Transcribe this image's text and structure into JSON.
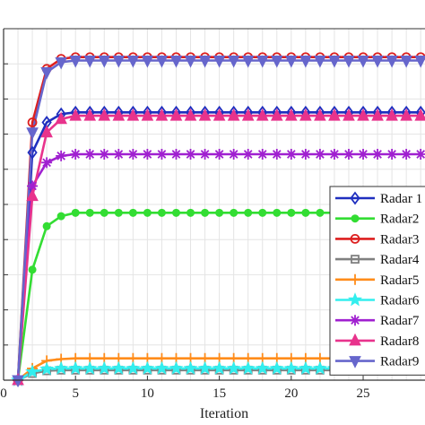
{
  "chart_data": {
    "type": "line",
    "title": "",
    "xlabel": "Iteration",
    "ylabel": "",
    "x_ticks": [
      0,
      5,
      10,
      15,
      20,
      25
    ],
    "xlim": [
      0,
      29.3
    ],
    "ylim": [
      0,
      1.05
    ],
    "grid": true,
    "legend_position": "right",
    "x": [
      1,
      2,
      3,
      4,
      5,
      6,
      7,
      8,
      9,
      10,
      11,
      12,
      13,
      14,
      15,
      16,
      17,
      18,
      19,
      20,
      21,
      22,
      23,
      24,
      25,
      26,
      27,
      28,
      29
    ],
    "series": [
      {
        "name": "Radar 1",
        "color": "#1f2fbf",
        "marker": "diamond",
        "values": [
          0,
          0.68,
          0.77,
          0.795,
          0.8,
          0.8,
          0.8,
          0.8,
          0.8,
          0.8,
          0.8,
          0.8,
          0.8,
          0.8,
          0.8,
          0.8,
          0.8,
          0.8,
          0.8,
          0.8,
          0.8,
          0.8,
          0.8,
          0.8,
          0.8,
          0.8,
          0.8,
          0.8,
          0.8
        ]
      },
      {
        "name": "Radar2",
        "color": "#33dd33",
        "marker": "circle-filled",
        "values": [
          0,
          0.33,
          0.46,
          0.49,
          0.5,
          0.5,
          0.5,
          0.5,
          0.5,
          0.5,
          0.5,
          0.5,
          0.5,
          0.5,
          0.5,
          0.5,
          0.5,
          0.5,
          0.5,
          0.5,
          0.5,
          0.5,
          0.5,
          0.5,
          0.5,
          0.5,
          0.5,
          0.5,
          0.5
        ]
      },
      {
        "name": "Radar3",
        "color": "#dd1f1f",
        "marker": "circle-open",
        "values": [
          0,
          0.77,
          0.93,
          0.96,
          0.965,
          0.965,
          0.965,
          0.965,
          0.965,
          0.965,
          0.965,
          0.965,
          0.965,
          0.965,
          0.965,
          0.965,
          0.965,
          0.965,
          0.965,
          0.965,
          0.965,
          0.965,
          0.965,
          0.965,
          0.965,
          0.965,
          0.965,
          0.965,
          0.965
        ]
      },
      {
        "name": "Radar4",
        "color": "#808080",
        "marker": "square",
        "values": [
          0,
          0.02,
          0.028,
          0.03,
          0.03,
          0.03,
          0.03,
          0.03,
          0.03,
          0.03,
          0.03,
          0.03,
          0.03,
          0.03,
          0.03,
          0.03,
          0.03,
          0.03,
          0.03,
          0.03,
          0.03,
          0.03,
          0.03,
          0.03,
          0.03,
          0.03,
          0.03,
          0.03,
          0.03
        ]
      },
      {
        "name": "Radar5",
        "color": "#ff8c1a",
        "marker": "plus",
        "values": [
          0,
          0.035,
          0.058,
          0.063,
          0.065,
          0.065,
          0.065,
          0.065,
          0.065,
          0.065,
          0.065,
          0.065,
          0.065,
          0.065,
          0.065,
          0.065,
          0.065,
          0.065,
          0.065,
          0.065,
          0.065,
          0.065,
          0.065,
          0.065,
          0.065,
          0.065,
          0.065,
          0.065,
          0.065
        ]
      },
      {
        "name": "Radar6",
        "color": "#33eeee",
        "marker": "star",
        "values": [
          0,
          0.025,
          0.033,
          0.035,
          0.035,
          0.035,
          0.035,
          0.035,
          0.035,
          0.035,
          0.035,
          0.035,
          0.035,
          0.035,
          0.035,
          0.035,
          0.035,
          0.035,
          0.035,
          0.035,
          0.035,
          0.035,
          0.035,
          0.035,
          0.035,
          0.035,
          0.035,
          0.035,
          0.035
        ]
      },
      {
        "name": "Radar7",
        "color": "#a020d0",
        "marker": "asterisk",
        "values": [
          0,
          0.58,
          0.65,
          0.67,
          0.675,
          0.675,
          0.675,
          0.675,
          0.675,
          0.675,
          0.675,
          0.675,
          0.675,
          0.675,
          0.675,
          0.675,
          0.675,
          0.675,
          0.675,
          0.675,
          0.675,
          0.675,
          0.675,
          0.675,
          0.675,
          0.675,
          0.675,
          0.675,
          0.675
        ]
      },
      {
        "name": "Radar8",
        "color": "#e8338c",
        "marker": "triangle-up",
        "values": [
          0,
          0.55,
          0.74,
          0.78,
          0.79,
          0.79,
          0.79,
          0.79,
          0.79,
          0.79,
          0.79,
          0.79,
          0.79,
          0.79,
          0.79,
          0.79,
          0.79,
          0.79,
          0.79,
          0.79,
          0.79,
          0.79,
          0.79,
          0.79,
          0.79,
          0.79,
          0.79,
          0.79,
          0.79
        ]
      },
      {
        "name": "Radar9",
        "color": "#6666cc",
        "marker": "triangle-down",
        "values": [
          0,
          0.74,
          0.92,
          0.95,
          0.955,
          0.955,
          0.955,
          0.955,
          0.955,
          0.955,
          0.955,
          0.955,
          0.955,
          0.955,
          0.955,
          0.955,
          0.955,
          0.955,
          0.955,
          0.955,
          0.955,
          0.955,
          0.955,
          0.955,
          0.955,
          0.955,
          0.955,
          0.955,
          0.955
        ]
      }
    ]
  }
}
